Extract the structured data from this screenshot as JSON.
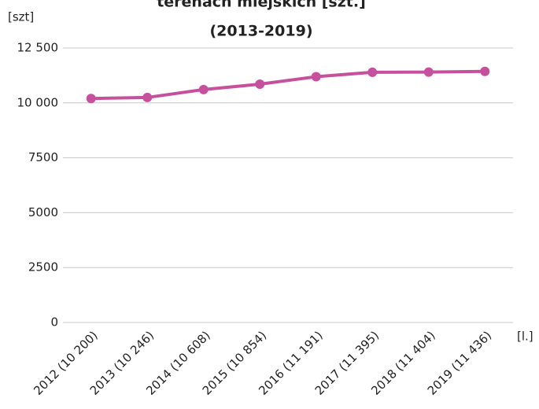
{
  "chart_data": {
    "type": "line",
    "title_lines": [
      "terenach miejskich [szt.]",
      "(2013-2019)"
    ],
    "y_label": "[szt]",
    "x_label": "[l.]",
    "categories": [
      "2012 (10 200)",
      "2013 (10 246)",
      "2014 (10 608)",
      "2015 (10 854)",
      "2016 (11 191)",
      "2017 (11 395)",
      "2018 (11 404)",
      "2019 (11 436)"
    ],
    "series": [
      {
        "name": "",
        "color": "#c6509e",
        "values": [
          10200,
          10246,
          10608,
          10854,
          11191,
          11395,
          11404,
          11436
        ]
      }
    ],
    "ylim": [
      0,
      12500
    ],
    "yticks": [
      0,
      2500,
      5000,
      7500,
      {
        "value": 10000,
        "label": "10 000"
      },
      {
        "value": 12500,
        "label": "12 500"
      }
    ],
    "grid": true
  }
}
